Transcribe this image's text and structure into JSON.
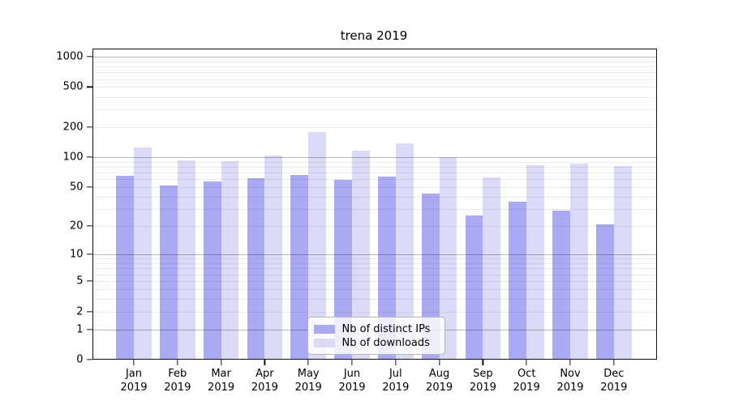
{
  "chart_data": {
    "type": "bar",
    "title": "trena 2019",
    "categories": [
      "Jan 2019",
      "Feb 2019",
      "Mar 2019",
      "Apr 2019",
      "May 2019",
      "Jun 2019",
      "Jul 2019",
      "Aug 2019",
      "Sep 2019",
      "Oct 2019",
      "Nov 2019",
      "Dec 2019"
    ],
    "series": [
      {
        "name": "Nb of distinct IPs",
        "color": "#a9a9f4",
        "values": [
          65,
          52,
          57,
          62,
          66,
          59,
          64,
          43,
          26,
          36,
          29,
          21
        ]
      },
      {
        "name": "Nb of downloads",
        "color": "#dbdbf8",
        "values": [
          125,
          94,
          91,
          105,
          180,
          117,
          138,
          100,
          63,
          83,
          87,
          81
        ]
      }
    ],
    "xlabel": "",
    "ylabel": "",
    "yscale": "log1p",
    "yticks": [
      0,
      1,
      2,
      5,
      10,
      20,
      50,
      100,
      200,
      500,
      1000
    ],
    "ylim": [
      0,
      1215
    ],
    "grid": "horizontal, minor and major, drawn over bars",
    "legend_position": "lower center"
  }
}
